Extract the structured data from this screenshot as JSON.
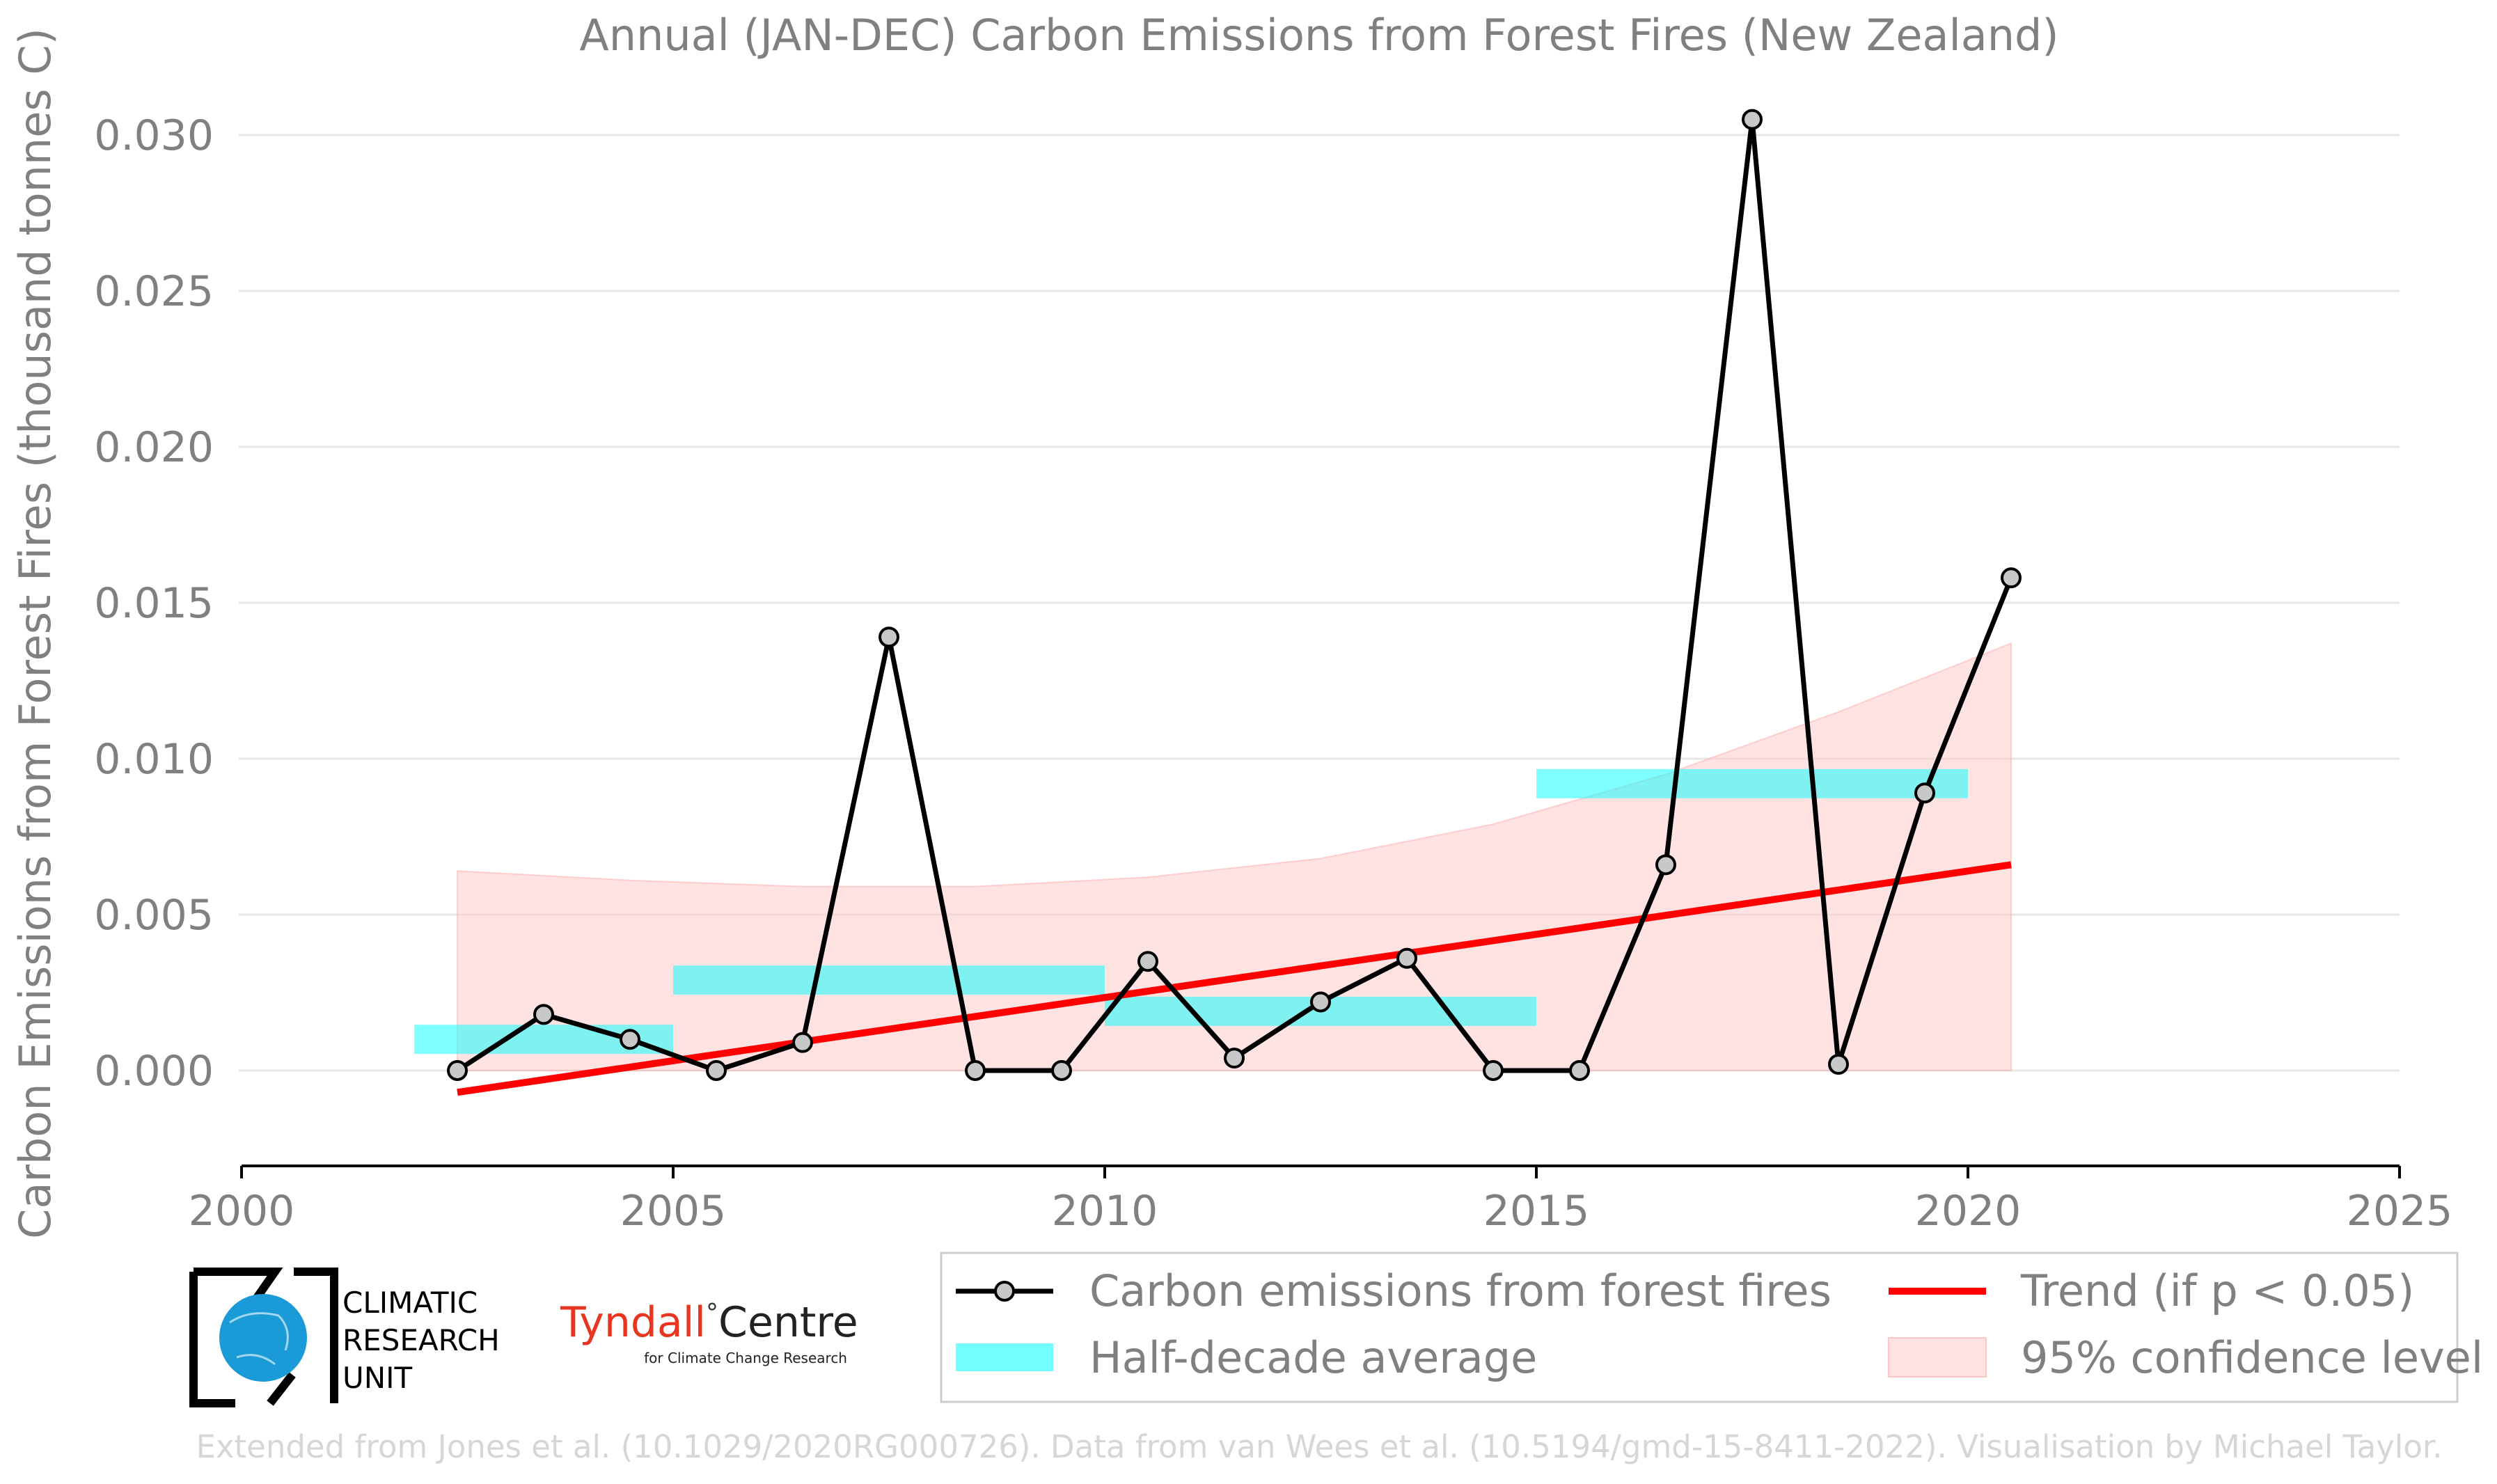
{
  "chart_data": {
    "type": "line",
    "title": "Annual (JAN-DEC) Carbon Emissions from Forest Fires (New Zealand)",
    "xlabel": "",
    "ylabel": "Carbon Emissions from Forest Fires (thousand tonnes C)",
    "xlim": [
      2000,
      2025
    ],
    "ylim": [
      -0.003,
      0.0305
    ],
    "x_ticks": [
      2000,
      2005,
      2010,
      2015,
      2020,
      2025
    ],
    "x_tick_labels": [
      "2000",
      "2005",
      "2010",
      "2015",
      "2020",
      "2025"
    ],
    "y_ticks": [
      0.0,
      0.005,
      0.01,
      0.015,
      0.02,
      0.025,
      0.03
    ],
    "y_tick_labels": [
      "0.000",
      "0.005",
      "0.010",
      "0.015",
      "0.020",
      "0.025",
      "0.030"
    ],
    "grid": "horizontal",
    "series": [
      {
        "name": "Carbon emissions from forest fires",
        "color": "#000000",
        "marker": "circle",
        "x": [
          2002.5,
          2003.5,
          2004.5,
          2005.5,
          2006.5,
          2007.5,
          2008.5,
          2009.5,
          2010.5,
          2011.5,
          2012.5,
          2013.5,
          2014.5,
          2015.5,
          2016.5,
          2017.5,
          2018.5,
          2019.5,
          2020.5
        ],
        "y": [
          0.0,
          0.0018,
          0.001,
          0.0,
          0.0009,
          0.0139,
          0.0,
          0.0,
          0.0035,
          0.0004,
          0.0022,
          0.0036,
          0.0,
          0.0,
          0.0066,
          0.0305,
          0.0002,
          0.0089,
          0.0158
        ]
      },
      {
        "name": "Half-decade average",
        "color": "#00ffff",
        "type": "bands",
        "segments": [
          {
            "x0": 2002,
            "x1": 2005,
            "y": 0.001
          },
          {
            "x0": 2005,
            "x1": 2010,
            "y": 0.0029
          },
          {
            "x0": 2010,
            "x1": 2015,
            "y": 0.0019
          },
          {
            "x0": 2015,
            "x1": 2020,
            "y": 0.0092
          }
        ]
      },
      {
        "name": "Trend (if p < 0.05)",
        "color": "#ff0000",
        "x": [
          2002.5,
          2020.5
        ],
        "y": [
          -0.0007,
          0.0066
        ]
      },
      {
        "name": "95% confidence level",
        "color": "#ffcccc",
        "type": "band",
        "x": [
          2002.5,
          2004.5,
          2006.5,
          2008.5,
          2010.5,
          2012.5,
          2014.5,
          2016.5,
          2018.5,
          2020.5
        ],
        "lower": [
          0.0,
          0.0,
          0.0,
          0.0,
          0.0,
          0.0,
          0.0,
          0.0,
          0.0,
          0.0
        ],
        "upper": [
          0.0064,
          0.0061,
          0.0059,
          0.0059,
          0.0062,
          0.0068,
          0.0079,
          0.0095,
          0.0115,
          0.0137
        ]
      }
    ],
    "legend": {
      "placement": "bottom-right",
      "entries": [
        "Carbon emissions from forest fires",
        "Trend (if p < 0.05)",
        "Half-decade average",
        "95% confidence level"
      ]
    }
  },
  "logos": {
    "cru_line1": "CLIMATIC",
    "cru_line2": "RESEARCH",
    "cru_line3": "UNIT",
    "tyndall_main": "Tyndall",
    "tyndall_degree": "°",
    "tyndall_centre": "Centre",
    "tyndall_sub": "for Climate Change Research"
  },
  "credit": "Extended from Jones et al. (10.1029/2020RG000726). Data from van Wees et al. (10.5194/gmd-15-8411-2022). Visualisation by Michael Taylor."
}
